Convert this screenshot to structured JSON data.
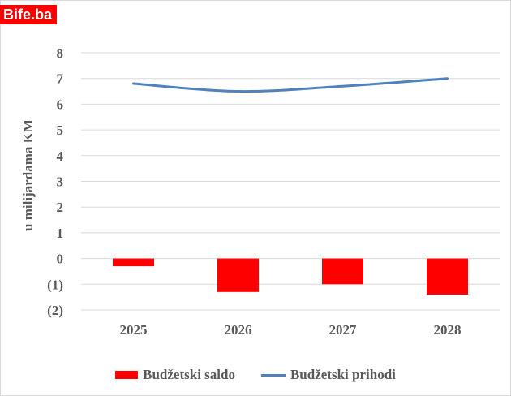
{
  "brand": {
    "text": "Bife.ba",
    "color": "#ff0000"
  },
  "chart_data": {
    "type": "bar+line",
    "title": "",
    "xlabel": "",
    "ylabel": "u milijardama  KM",
    "categories": [
      "2025",
      "2026",
      "2027",
      "2028"
    ],
    "ylim": [
      -2,
      8
    ],
    "yticks": [
      -2,
      -1,
      0,
      1,
      2,
      3,
      4,
      5,
      6,
      7,
      8
    ],
    "ytick_labels": [
      "(2)",
      "(1)",
      "0",
      "1",
      "2",
      "3",
      "4",
      "5",
      "6",
      "7",
      "8"
    ],
    "grid": true,
    "legend_position": "bottom",
    "series": [
      {
        "name": "Budžetski saldo",
        "kind": "bar",
        "color": "#ff0000",
        "values": [
          -0.3,
          -1.3,
          -1.0,
          -1.4
        ]
      },
      {
        "name": "Budžetski prihodi",
        "kind": "line",
        "color": "#4f81bd",
        "values": [
          6.8,
          6.5,
          6.7,
          7.0
        ]
      }
    ]
  }
}
